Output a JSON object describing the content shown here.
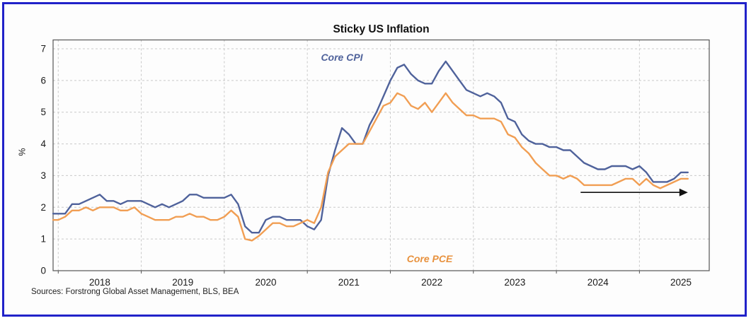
{
  "window": {
    "border_color": "#2122c9",
    "background": "#ffffff"
  },
  "chart_data": {
    "type": "line",
    "title": "Sticky US Inflation",
    "ylabel": "%",
    "ylim": [
      0,
      7
    ],
    "yticks": [
      0,
      1,
      2,
      3,
      4,
      5,
      6,
      7
    ],
    "xticks": [
      "2018",
      "2019",
      "2020",
      "2021",
      "2022",
      "2023",
      "2024",
      "2025"
    ],
    "x_start": "2017-12",
    "x_end": "2025-08",
    "frequency": "monthly",
    "grid": "dashed, horizontal at each integer and vertical at each year start",
    "legend_position": "in-plot text annotations",
    "series": [
      {
        "name": "Core CPI",
        "color": "#4f629b",
        "values": [
          1.8,
          1.8,
          1.8,
          2.1,
          2.1,
          2.2,
          2.3,
          2.4,
          2.2,
          2.2,
          2.1,
          2.2,
          2.2,
          2.2,
          2.1,
          2.0,
          2.1,
          2.0,
          2.1,
          2.2,
          2.4,
          2.4,
          2.3,
          2.3,
          2.3,
          2.3,
          2.4,
          2.1,
          1.4,
          1.2,
          1.2,
          1.6,
          1.7,
          1.7,
          1.6,
          1.6,
          1.6,
          1.4,
          1.3,
          1.6,
          3.0,
          3.8,
          4.5,
          4.3,
          4.0,
          4.0,
          4.6,
          5.0,
          5.5,
          6.0,
          6.4,
          6.5,
          6.2,
          6.0,
          5.9,
          5.9,
          6.3,
          6.6,
          6.3,
          6.0,
          5.7,
          5.6,
          5.5,
          5.6,
          5.5,
          5.3,
          4.8,
          4.7,
          4.3,
          4.1,
          4.0,
          4.0,
          3.9,
          3.9,
          3.8,
          3.8,
          3.6,
          3.4,
          3.3,
          3.2,
          3.2,
          3.3,
          3.3,
          3.3,
          3.2,
          3.3,
          3.1,
          2.8,
          2.8,
          2.8,
          2.9,
          3.1,
          3.1
        ]
      },
      {
        "name": "Core PCE",
        "color": "#f19e53",
        "values": [
          1.6,
          1.6,
          1.7,
          1.9,
          1.9,
          2.0,
          1.9,
          2.0,
          2.0,
          2.0,
          1.9,
          1.9,
          2.0,
          1.8,
          1.7,
          1.6,
          1.6,
          1.6,
          1.7,
          1.7,
          1.8,
          1.7,
          1.7,
          1.6,
          1.6,
          1.7,
          1.9,
          1.7,
          1.0,
          0.95,
          1.1,
          1.3,
          1.5,
          1.5,
          1.4,
          1.4,
          1.5,
          1.6,
          1.5,
          2.0,
          3.1,
          3.6,
          3.8,
          4.0,
          4.0,
          4.0,
          4.4,
          4.8,
          5.2,
          5.3,
          5.6,
          5.5,
          5.2,
          5.1,
          5.3,
          5.0,
          5.3,
          5.6,
          5.3,
          5.1,
          4.9,
          4.9,
          4.8,
          4.8,
          4.8,
          4.7,
          4.3,
          4.2,
          3.9,
          3.7,
          3.4,
          3.2,
          3.0,
          3.0,
          2.9,
          3.0,
          2.9,
          2.7,
          2.7,
          2.7,
          2.7,
          2.7,
          2.8,
          2.9,
          2.9,
          2.7,
          2.9,
          2.7,
          2.6,
          2.7,
          2.8,
          2.9,
          2.9
        ]
      }
    ],
    "annotations": {
      "core_cpi_label": {
        "text": "Core CPI",
        "color": "#4f629b"
      },
      "core_pce_label": {
        "text": "Core PCE",
        "color": "#e8913d"
      },
      "arrow": {
        "direction": "right",
        "from_month": 76.5,
        "to_month": 92,
        "at_value": 2.47,
        "color": "#111111"
      }
    },
    "source_note": "Sources: Forstrong Global Asset Management, BLS, BEA"
  }
}
